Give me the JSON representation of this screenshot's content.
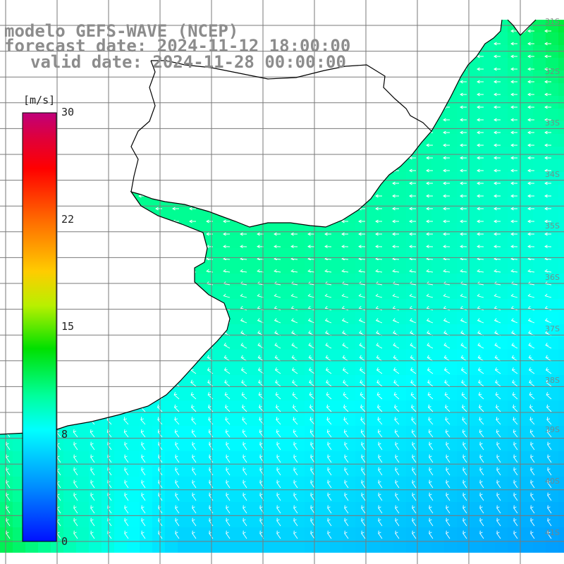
{
  "title": {
    "line1": "modelo GEFS-WAVE (NCEP)",
    "line2": "forecast date: 2024-11-12 18:00:00",
    "line3": "valid date: 2024-11-28 00:00:00"
  },
  "colorbar": {
    "unit": "[m/s]",
    "ticks": [
      "30",
      "22",
      "15",
      "8",
      "0"
    ],
    "values": [
      30,
      22,
      15,
      8,
      0
    ]
  },
  "lat_labels": [
    "31S",
    "32S",
    "33S",
    "34S",
    "35S",
    "36S",
    "37S",
    "38S",
    "39S",
    "40S",
    "41S"
  ],
  "colors": {
    "land": "#ffffff",
    "coast": "#000000",
    "grid": "#808080",
    "arrow": "#ffffff",
    "title": "#8c8c8c"
  }
}
